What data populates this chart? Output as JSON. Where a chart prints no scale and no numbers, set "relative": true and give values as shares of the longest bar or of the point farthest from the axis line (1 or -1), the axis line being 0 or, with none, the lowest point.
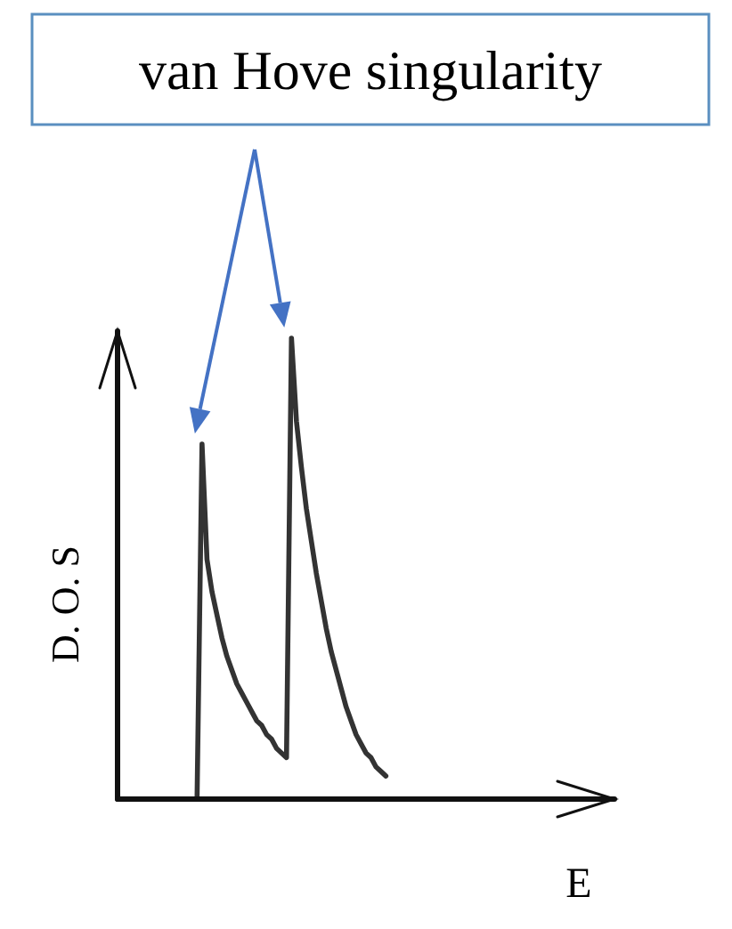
{
  "chart_data": {
    "type": "line",
    "relative": true,
    "xlabel": "E",
    "ylabel": "D. O. S",
    "annotations": [
      "van Hove singularity"
    ],
    "categories": [
      null,
      null,
      null,
      null,
      null,
      null,
      null,
      null,
      null,
      null,
      null,
      null,
      null,
      null,
      null,
      null,
      null,
      null,
      null,
      null,
      null,
      null,
      null,
      null,
      null,
      null,
      null,
      null,
      null,
      null,
      null,
      null,
      null,
      null,
      null,
      null,
      null,
      null,
      null,
      null,
      null,
      null,
      null,
      null,
      null,
      null,
      null,
      null,
      null,
      null,
      null,
      null,
      null,
      null,
      null,
      null,
      null,
      null,
      null,
      null,
      null,
      null,
      null,
      null,
      null,
      null,
      null,
      null,
      null,
      null,
      null,
      null,
      null,
      null,
      null,
      null,
      null,
      null,
      null,
      null,
      null,
      null,
      null,
      null,
      null,
      null,
      null,
      null,
      null,
      null,
      null,
      null,
      null,
      null,
      null,
      null,
      null,
      null,
      null,
      null,
      null
    ],
    "series": [
      {
        "color": "#333333",
        "values": [
          null,
          null,
          null,
          null,
          null,
          null,
          null,
          null,
          null,
          null,
          null,
          null,
          null,
          null,
          null,
          null,
          0,
          0.77,
          0.52,
          0.45,
          0.4,
          0.35,
          0.31,
          0.28,
          0.25,
          0.23,
          0.21,
          0.19,
          0.17,
          0.16,
          0.14,
          0.13,
          0.11,
          0.1,
          0.09,
          1.0,
          0.82,
          0.72,
          0.63,
          0.56,
          0.49,
          0.43,
          0.37,
          0.32,
          0.28,
          0.24,
          0.2,
          0.17,
          0.14,
          0.12,
          0.1,
          0.09,
          0.07,
          0.06,
          0.05,
          null,
          null,
          null,
          null,
          null,
          null,
          null,
          null,
          null,
          null,
          null,
          null,
          null,
          null,
          null,
          null,
          null,
          null,
          null,
          null,
          null,
          null,
          null,
          null,
          null,
          null,
          null,
          null,
          null,
          null,
          null,
          null,
          null,
          null,
          null,
          null,
          null,
          null,
          null,
          null,
          null,
          null,
          null,
          null,
          null,
          null
        ]
      }
    ],
    "marker": "none",
    "line_style": "solid"
  }
}
